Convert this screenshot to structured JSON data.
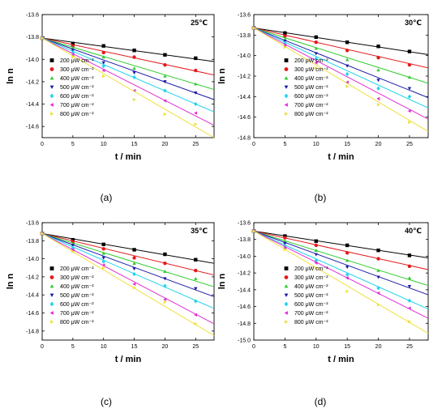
{
  "colors": {
    "200": "#000000",
    "300": "#e41a1c",
    "400": "#2ecc2e",
    "500": "#1a1aa8",
    "600": "#22d3ee",
    "700": "#e030d0",
    "800": "#f0e03c"
  },
  "markers": {
    "200": "square",
    "300": "circle",
    "400": "triangle-up",
    "500": "triangle-down",
    "600": "diamond",
    "700": "triangle-left",
    "800": "triangle-right"
  },
  "chart_data": [
    {
      "type": "scatter",
      "panel_label": "(a)",
      "temperature": "25℃",
      "xlabel": "t / min",
      "ylabel": "ln n",
      "xlim": [
        0,
        28
      ],
      "ylim": [
        -14.7,
        -13.6
      ],
      "xticks": [
        0,
        5,
        10,
        15,
        20,
        25
      ],
      "yticks": [
        -13.6,
        -13.8,
        -14.0,
        -14.2,
        -14.4,
        -14.6
      ],
      "legend_position": "left",
      "x": [
        0,
        5,
        10,
        15,
        20,
        25
      ],
      "series": [
        {
          "name": "200 μW cm⁻²",
          "values": [
            -13.81,
            -13.86,
            -13.88,
            -13.92,
            -13.96,
            -13.99
          ],
          "fit": [
            -13.81,
            -14.02
          ]
        },
        {
          "name": "300 μW cm⁻²",
          "values": [
            -13.81,
            -13.88,
            -13.94,
            -13.98,
            -14.05,
            -14.1
          ],
          "fit": [
            -13.81,
            -14.14
          ]
        },
        {
          "name": "400 μW cm⁻²",
          "values": [
            -13.81,
            -13.9,
            -13.98,
            -14.08,
            -14.15,
            -14.22
          ],
          "fit": [
            -13.81,
            -14.27
          ]
        },
        {
          "name": "500 μW cm⁻²",
          "values": [
            -13.81,
            -13.92,
            -14.03,
            -14.12,
            -14.2,
            -14.3
          ],
          "fit": [
            -13.81,
            -14.36
          ]
        },
        {
          "name": "600 μW cm⁻²",
          "values": [
            -13.81,
            -13.94,
            -14.06,
            -14.16,
            -14.28,
            -14.4
          ],
          "fit": [
            -13.81,
            -14.47
          ]
        },
        {
          "name": "700 μW cm⁻²",
          "values": [
            -13.81,
            -13.96,
            -14.1,
            -14.28,
            -14.37,
            -14.48
          ],
          "fit": [
            -13.81,
            -14.59
          ]
        },
        {
          "name": "800 μW cm⁻²",
          "values": [
            -13.81,
            -13.98,
            -14.15,
            -14.36,
            -14.49,
            -14.58
          ],
          "fit": [
            -13.81,
            -14.7
          ]
        }
      ]
    },
    {
      "type": "scatter",
      "panel_label": "(b)",
      "temperature": "30℃",
      "xlabel": "t / min",
      "ylabel": "ln n",
      "xlim": [
        0,
        28
      ],
      "ylim": [
        -14.8,
        -13.6
      ],
      "xticks": [
        0,
        5,
        10,
        15,
        20,
        25
      ],
      "yticks": [
        -13.6,
        -13.8,
        -14.0,
        -14.2,
        -14.4,
        -14.6,
        -14.8
      ],
      "legend_position": "right",
      "x": [
        0,
        5,
        10,
        15,
        20,
        25
      ],
      "series": [
        {
          "name": "200 μW cm⁻²",
          "values": [
            -13.73,
            -13.78,
            -13.82,
            -13.87,
            -13.91,
            -13.96
          ],
          "fit": [
            -13.73,
            -13.99
          ]
        },
        {
          "name": "300 μW cm⁻²",
          "values": [
            -13.73,
            -13.81,
            -13.87,
            -13.95,
            -14.02,
            -14.09
          ],
          "fit": [
            -13.73,
            -14.12
          ]
        },
        {
          "name": "400 μW cm⁻²",
          "values": [
            -13.73,
            -13.84,
            -13.93,
            -14.04,
            -14.14,
            -14.21
          ],
          "fit": [
            -13.73,
            -14.27
          ]
        },
        {
          "name": "500 μW cm⁻²",
          "values": [
            -13.73,
            -13.86,
            -13.98,
            -14.1,
            -14.24,
            -14.32
          ],
          "fit": [
            -13.73,
            -14.41
          ]
        },
        {
          "name": "600 μW cm⁻²",
          "values": [
            -13.73,
            -13.88,
            -14.03,
            -14.18,
            -14.32,
            -14.4
          ],
          "fit": [
            -13.73,
            -14.51
          ]
        },
        {
          "name": "700 μW cm⁻²",
          "values": [
            -13.73,
            -13.9,
            -14.07,
            -14.26,
            -14.42,
            -14.54
          ],
          "fit": [
            -13.73,
            -14.62
          ]
        },
        {
          "name": "800 μW cm⁻²",
          "values": [
            -13.73,
            -13.92,
            -14.12,
            -14.3,
            -14.48,
            -14.65
          ],
          "fit": [
            -13.73,
            -14.74
          ]
        }
      ]
    },
    {
      "type": "scatter",
      "panel_label": "(c)",
      "temperature": "35℃",
      "xlabel": "t / min",
      "ylabel": "ln n",
      "xlim": [
        0,
        28
      ],
      "ylim": [
        -14.9,
        -13.6
      ],
      "xticks": [
        0,
        5,
        10,
        15,
        20,
        25
      ],
      "yticks": [
        -13.6,
        -13.8,
        -14.0,
        -14.2,
        -14.4,
        -14.6,
        -14.8
      ],
      "legend_position": "left",
      "x": [
        0,
        5,
        10,
        15,
        20,
        25
      ],
      "series": [
        {
          "name": "200 μW cm⁻²",
          "values": [
            -13.72,
            -13.79,
            -13.84,
            -13.9,
            -13.95,
            -14.01
          ],
          "fit": [
            -13.72,
            -14.05
          ]
        },
        {
          "name": "300 μW cm⁻²",
          "values": [
            -13.72,
            -13.81,
            -13.89,
            -13.99,
            -14.05,
            -14.13
          ],
          "fit": [
            -13.72,
            -14.18
          ]
        },
        {
          "name": "400 μW cm⁻²",
          "values": [
            -13.72,
            -13.84,
            -13.94,
            -14.05,
            -14.14,
            -14.22
          ],
          "fit": [
            -13.72,
            -14.31
          ]
        },
        {
          "name": "500 μW cm⁻²",
          "values": [
            -13.72,
            -13.85,
            -13.99,
            -14.11,
            -14.22,
            -14.33
          ],
          "fit": [
            -13.72,
            -14.42
          ]
        },
        {
          "name": "600 μW cm⁻²",
          "values": [
            -13.72,
            -13.88,
            -14.03,
            -14.17,
            -14.3,
            -14.47
          ],
          "fit": [
            -13.72,
            -14.55
          ]
        },
        {
          "name": "700 μW cm⁻²",
          "values": [
            -13.72,
            -13.9,
            -14.07,
            -14.28,
            -14.45,
            -14.62
          ],
          "fit": [
            -13.72,
            -14.72
          ]
        },
        {
          "name": "800 μW cm⁻²",
          "values": [
            -13.72,
            -13.92,
            -14.1,
            -14.32,
            -14.48,
            -14.72
          ],
          "fit": [
            -13.72,
            -14.85
          ]
        }
      ]
    },
    {
      "type": "scatter",
      "panel_label": "(d)",
      "temperature": "40℃",
      "xlabel": "t / min",
      "ylabel": "ln n",
      "xlim": [
        0,
        28
      ],
      "ylim": [
        -15.0,
        -13.6
      ],
      "xticks": [
        0,
        5,
        10,
        15,
        20,
        25
      ],
      "yticks": [
        -13.6,
        -13.8,
        -14.0,
        -14.2,
        -14.4,
        -14.6,
        -14.8,
        -15.0
      ],
      "legend_position": "right",
      "x": [
        0,
        5,
        10,
        15,
        20,
        25
      ],
      "series": [
        {
          "name": "200 μW cm⁻²",
          "values": [
            -13.7,
            -13.76,
            -13.82,
            -13.87,
            -13.93,
            -13.99
          ],
          "fit": [
            -13.7,
            -14.02
          ]
        },
        {
          "name": "300 μW cm⁻²",
          "values": [
            -13.7,
            -13.78,
            -13.87,
            -13.96,
            -14.03,
            -14.12
          ],
          "fit": [
            -13.7,
            -14.16
          ]
        },
        {
          "name": "400 μW cm⁻²",
          "values": [
            -13.7,
            -13.82,
            -13.93,
            -14.05,
            -14.17,
            -14.26
          ],
          "fit": [
            -13.7,
            -14.35
          ]
        },
        {
          "name": "500 μW cm⁻²",
          "values": [
            -13.7,
            -13.85,
            -13.98,
            -14.13,
            -14.25,
            -14.36
          ],
          "fit": [
            -13.7,
            -14.46
          ]
        },
        {
          "name": "600 μW cm⁻²",
          "values": [
            -13.7,
            -13.88,
            -14.05,
            -14.22,
            -14.38,
            -14.53
          ],
          "fit": [
            -13.7,
            -14.63
          ]
        },
        {
          "name": "700 μW cm⁻²",
          "values": [
            -13.7,
            -13.9,
            -14.08,
            -14.26,
            -14.44,
            -14.62
          ],
          "fit": [
            -13.7,
            -14.74
          ]
        },
        {
          "name": "800 μW cm⁻²",
          "values": [
            -13.7,
            -13.92,
            -14.14,
            -14.42,
            -14.58,
            -14.78
          ],
          "fit": [
            -13.7,
            -14.92
          ]
        }
      ]
    }
  ]
}
